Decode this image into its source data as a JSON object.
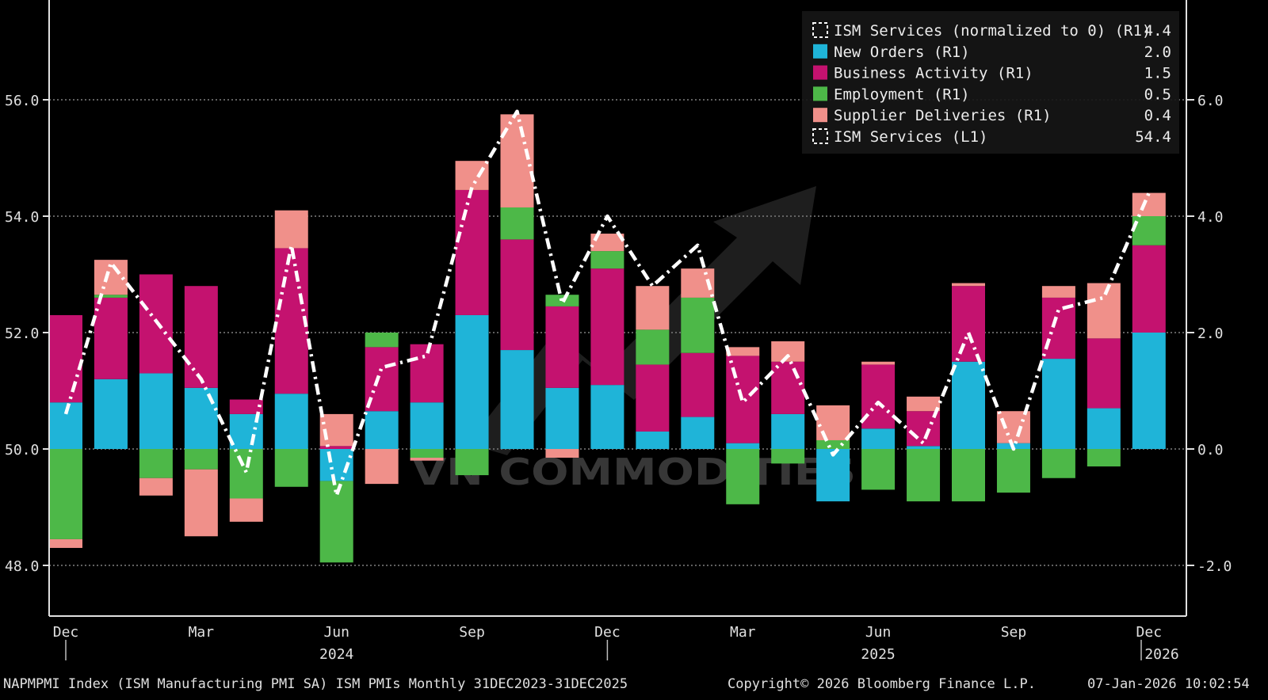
{
  "chart_data": {
    "type": "bar",
    "stacked": true,
    "months": [
      "Dec",
      "Jan",
      "Feb",
      "Mar",
      "Apr",
      "May",
      "Jun",
      "Jul",
      "Aug",
      "Sep",
      "Oct",
      "Nov",
      "Dec",
      "Jan",
      "Feb",
      "Mar",
      "Apr",
      "May",
      "Jun",
      "Jul",
      "Aug",
      "Sep",
      "Oct",
      "Nov",
      "Dec"
    ],
    "x_tick_labels": [
      {
        "index": 0,
        "label": "Dec"
      },
      {
        "index": 3,
        "label": "Mar"
      },
      {
        "index": 6,
        "label": "Jun"
      },
      {
        "index": 9,
        "label": "Sep"
      },
      {
        "index": 12,
        "label": "Dec"
      },
      {
        "index": 15,
        "label": "Mar"
      },
      {
        "index": 18,
        "label": "Jun"
      },
      {
        "index": 21,
        "label": "Sep"
      },
      {
        "index": 24,
        "label": "Dec"
      }
    ],
    "year_labels": [
      {
        "index": 6,
        "label": "2024"
      },
      {
        "index": 18,
        "label": "2025"
      },
      {
        "index": 24.6,
        "label": "2026"
      }
    ],
    "left_axis": {
      "ylim": [
        47.2,
        57.6
      ],
      "ticks": [
        48,
        50,
        52,
        54,
        56
      ],
      "tick_labels": [
        "48.0",
        "50.0",
        "52.0",
        "54.0",
        "56.0"
      ]
    },
    "right_axis": {
      "ylim": [
        -2.8,
        7.6
      ],
      "ticks": [
        -2,
        0,
        2,
        4,
        6
      ],
      "tick_labels": [
        "-2.0",
        "0.0",
        "2.0",
        "4.0",
        "6.0"
      ]
    },
    "grid": true,
    "legend_position": "top-right",
    "series": [
      {
        "name": "New Orders (R1)",
        "axis": "right",
        "color": "#1fb4d8",
        "last_value": "2.0",
        "values": [
          0.8,
          1.2,
          1.3,
          1.05,
          0.6,
          0.95,
          -0.55,
          0.65,
          0.8,
          2.3,
          1.7,
          1.05,
          1.1,
          0.3,
          0.55,
          0.1,
          0.6,
          -0.9,
          0.35,
          0.05,
          1.5,
          0.1,
          1.55,
          0.7,
          2.0
        ]
      },
      {
        "name": "Business Activity (R1)",
        "axis": "right",
        "color": "#c4126f",
        "values": [
          1.5,
          1.4,
          1.7,
          1.75,
          0.25,
          2.5,
          0.05,
          1.1,
          1.0,
          2.15,
          1.9,
          1.4,
          2.0,
          1.15,
          1.1,
          1.5,
          0.9,
          0.0,
          1.1,
          0.6,
          1.3,
          0.0,
          1.05,
          1.2,
          1.5
        ],
        "last_value": "1.5"
      },
      {
        "name": "Employment (R1)",
        "axis": "right",
        "color": "#4db848",
        "last_value": "0.5",
        "values": [
          -1.55,
          0.05,
          -0.5,
          -0.35,
          -0.85,
          -0.65,
          -1.4,
          0.25,
          -0.15,
          -0.45,
          0.55,
          0.2,
          0.3,
          0.6,
          0.95,
          -0.95,
          -0.25,
          0.15,
          -0.7,
          -0.9,
          -0.9,
          -0.75,
          -0.5,
          -0.3,
          0.5
        ]
      },
      {
        "name": "Supplier Deliveries (R1)",
        "axis": "right",
        "color": "#f0908a",
        "last_value": "0.4",
        "values": [
          -0.15,
          0.6,
          -0.3,
          -1.15,
          -0.4,
          0.65,
          0.55,
          -0.6,
          -0.05,
          0.5,
          1.6,
          -0.15,
          0.3,
          0.75,
          0.5,
          0.15,
          0.35,
          0.6,
          0.05,
          0.25,
          0.05,
          0.55,
          0.2,
          0.95,
          0.4
        ]
      },
      {
        "name": "ISM Services (normalized to 0) (R1)",
        "axis": "right",
        "color": "#ffffff",
        "dashed": true,
        "last_value": "4.4",
        "values": [
          0.6,
          3.2,
          2.2,
          1.2,
          -0.4,
          3.5,
          -0.8,
          1.4,
          1.6,
          4.5,
          5.8,
          2.5,
          4.0,
          2.8,
          3.5,
          0.8,
          1.6,
          -0.1,
          0.8,
          0.1,
          2.0,
          0.0,
          2.4,
          2.6,
          4.4
        ]
      },
      {
        "name": "ISM Services (L1)",
        "axis": "left",
        "color": "#ffffff",
        "dashed": true,
        "last_value": "54.4",
        "values": [
          50.6,
          53.2,
          52.2,
          51.2,
          49.6,
          53.5,
          49.2,
          51.4,
          51.6,
          54.5,
          55.8,
          52.5,
          54.0,
          52.8,
          53.5,
          50.8,
          51.6,
          49.9,
          50.8,
          50.1,
          52.0,
          50.0,
          52.4,
          52.6,
          54.4
        ]
      }
    ]
  },
  "footer": {
    "left": "NAPMPMI Index (ISM Manufacturing PMI SA) ISM PMIs Monthly 31DEC2023-31DEC2025",
    "center": "Copyright© 2026 Bloomberg Finance L.P.",
    "right": "07-Jan-2026 10:02:54"
  },
  "watermark": {
    "text": "VN COMMODITIES"
  }
}
